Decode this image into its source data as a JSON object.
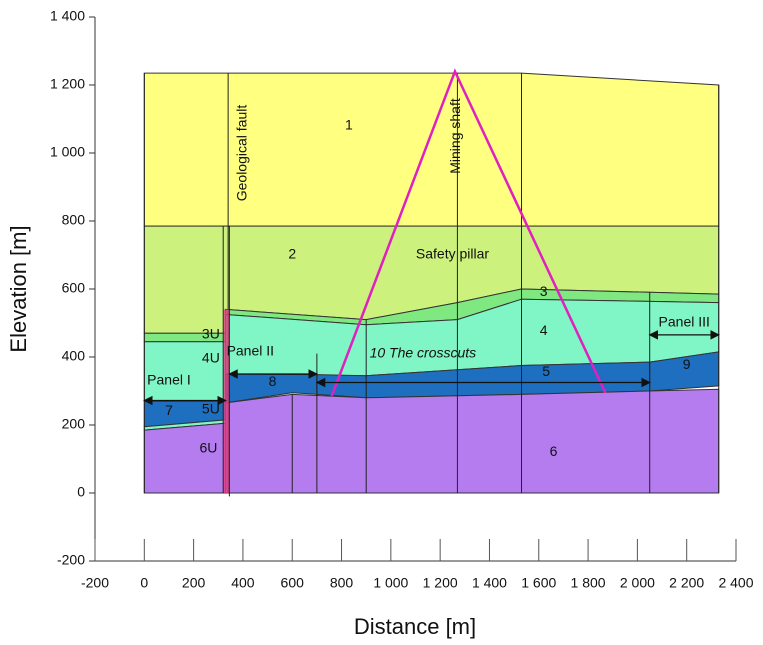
{
  "chart_data": {
    "type": "cross-section",
    "xlabel": "Distance [m]",
    "ylabel": "Elevation [m]",
    "xlim": [
      -200,
      2400
    ],
    "ylim": [
      -200,
      1400
    ],
    "xticks": [
      -200,
      0,
      200,
      400,
      600,
      800,
      {
        "value": 1000,
        "label": "1 000"
      },
      {
        "value": 1200,
        "label": "1 200"
      },
      {
        "value": 1400,
        "label": "1 400"
      },
      {
        "value": 1600,
        "label": "1 600"
      },
      {
        "value": 1800,
        "label": "1 800"
      },
      {
        "value": 2000,
        "label": "2 000"
      },
      {
        "value": 2200,
        "label": "2 200"
      },
      {
        "value": 2400,
        "label": "2 400"
      }
    ],
    "yticks": [
      -200,
      0,
      200,
      400,
      600,
      800,
      {
        "value": 1000,
        "label": "1 000"
      },
      {
        "value": 1200,
        "label": "1 200"
      },
      {
        "value": 1400,
        "label": "1 400"
      }
    ],
    "layers": [
      {
        "name": "1",
        "color": "#ffff80",
        "x": [
          0,
          340,
          1530,
          2330,
          2330,
          0
        ],
        "y": [
          1235,
          1235,
          1235,
          1200,
          785,
          785
        ]
      },
      {
        "name": "2",
        "color": "#ccf27d",
        "x": [
          0,
          2330,
          2330,
          1530,
          1270,
          900,
          330,
          330,
          0
        ],
        "y": [
          785,
          785,
          585,
          600,
          560,
          510,
          540,
          470,
          470
        ]
      },
      {
        "name": "3",
        "color": "#80e880",
        "x": [
          330,
          900,
          1270,
          1530,
          2330,
          2330,
          1530,
          1270,
          900,
          330
        ],
        "y": [
          540,
          510,
          560,
          600,
          585,
          560,
          570,
          510,
          495,
          525
        ]
      },
      {
        "name": "3U",
        "color": "#80e880",
        "x": [
          0,
          330,
          330,
          0
        ],
        "y": [
          470,
          470,
          445,
          445
        ]
      },
      {
        "name": "4",
        "color": "#80f5c5",
        "x": [
          330,
          900,
          1270,
          1530,
          2330,
          2330,
          2050,
          1530,
          900,
          330
        ],
        "y": [
          525,
          495,
          510,
          570,
          560,
          415,
          385,
          375,
          345,
          350
        ]
      },
      {
        "name": "4U",
        "color": "#80f5c5",
        "x": [
          0,
          330,
          330,
          0
        ],
        "y": [
          445,
          445,
          270,
          270
        ]
      },
      {
        "name": "8",
        "color": "#1f6fc0",
        "x": [
          330,
          700,
          700,
          600,
          330
        ],
        "y": [
          350,
          348,
          290,
          295,
          265
        ]
      },
      {
        "name": "5",
        "color": "#1f6fc0",
        "x": [
          700,
          900,
          1530,
          2050,
          2050,
          1530,
          900,
          700
        ],
        "y": [
          348,
          345,
          375,
          385,
          300,
          290,
          280,
          290
        ]
      },
      {
        "name": "9",
        "color": "#1f6fc0",
        "x": [
          2050,
          2330,
          2330,
          2050
        ],
        "y": [
          385,
          415,
          315,
          300
        ]
      },
      {
        "name": "7",
        "color": "#1f6fc0",
        "x": [
          0,
          330,
          330,
          0
        ],
        "y": [
          270,
          270,
          215,
          195
        ]
      },
      {
        "name": "5U",
        "color": "#80f5c5",
        "x": [
          0,
          330,
          330,
          0
        ],
        "y": [
          195,
          215,
          205,
          185
        ]
      },
      {
        "name": "6U",
        "color": "#b57cf0",
        "x": [
          0,
          330,
          330,
          0
        ],
        "y": [
          185,
          205,
          0,
          0
        ]
      },
      {
        "name": "6",
        "color": "#b57cf0",
        "x": [
          330,
          600,
          900,
          1530,
          2050,
          2330,
          2330,
          330
        ],
        "y": [
          265,
          290,
          280,
          290,
          300,
          305,
          0,
          0
        ]
      }
    ],
    "sections": {
      "x": [
        0,
        340,
        600,
        700,
        900,
        1270,
        1530,
        2050,
        2330
      ],
      "top": [
        1235,
        1235,
        290,
        410,
        510,
        1235,
        1235,
        590,
        1200
      ]
    },
    "shaft": {
      "name": "Mining shaft",
      "color": "#e020c0",
      "x": [
        760,
        1260,
        1870
      ],
      "y": [
        285,
        1240,
        295
      ]
    },
    "fault": {
      "name": "Geological fault",
      "color": "#e04080"
    },
    "annotations": [
      "Safety pillar",
      "10 The crosscuts",
      "Panel I",
      "Panel II",
      "Panel III"
    ]
  }
}
